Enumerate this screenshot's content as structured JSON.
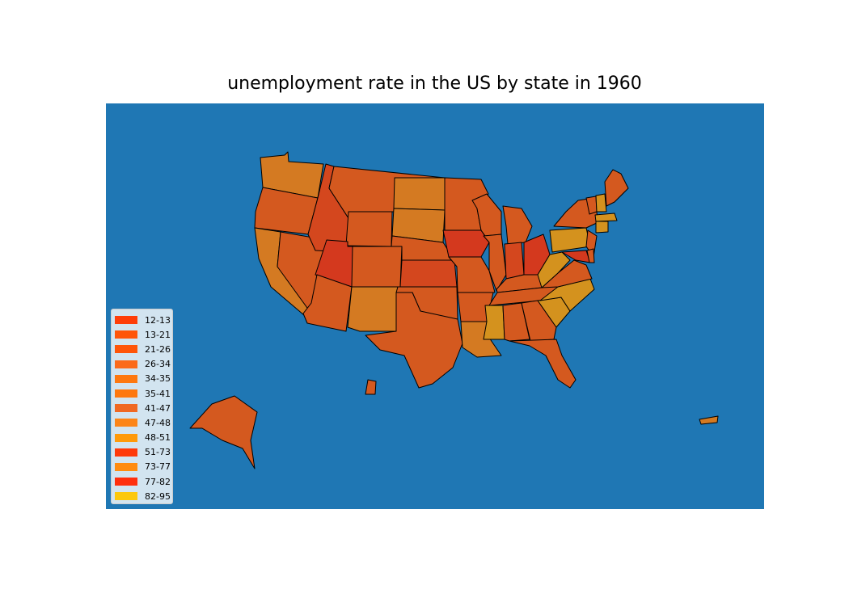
{
  "chart_data": {
    "type": "choropleth",
    "title": "unemployment rate in the US by state in 1960",
    "ocean_color": "#1f77b4",
    "legend": [
      {
        "label": "12-13",
        "color": "#ff3e09"
      },
      {
        "label": "13-21",
        "color": "#ff5509"
      },
      {
        "label": "21-26",
        "color": "#ff5509"
      },
      {
        "label": "26-34",
        "color": "#fb6a1a"
      },
      {
        "label": "34-35",
        "color": "#fe780f"
      },
      {
        "label": "35-41",
        "color": "#fe780f"
      },
      {
        "label": "41-47",
        "color": "#f06822"
      },
      {
        "label": "47-48",
        "color": "#fc8518"
      },
      {
        "label": "48-51",
        "color": "#ff9a0a"
      },
      {
        "label": "51-73",
        "color": "#ff3a0a"
      },
      {
        "label": "73-77",
        "color": "#ff8c10"
      },
      {
        "label": "77-82",
        "color": "#ff2f0d"
      },
      {
        "label": "82-95",
        "color": "#fcc80c"
      }
    ],
    "state_colors": {
      "WA": "#d47a22",
      "OR": "#d4591f",
      "CA": "#d47a22",
      "NV": "#d4591f",
      "ID": "#d4471e",
      "MT": "#d4591f",
      "WY": "#d4591f",
      "UT": "#d4391e",
      "AZ": "#d4591f",
      "CO": "#d4591f",
      "NM": "#d47a22",
      "ND": "#d47a22",
      "SD": "#d47a22",
      "NE": "#d4591f",
      "KS": "#d4471e",
      "OK": "#d4591f",
      "TX": "#d4591f",
      "MN": "#d4591f",
      "IA": "#d4391e",
      "MO": "#d4591f",
      "AR": "#d4591f",
      "LA": "#d47a22",
      "WI": "#d4591f",
      "IL": "#d4591f",
      "MI": "#d4591f",
      "IN": "#d4471e",
      "OH": "#d4391e",
      "KY": "#d4591f",
      "TN": "#d4591f",
      "MS": "#d4921e",
      "AL": "#d4591f",
      "GA": "#d4591f",
      "FL": "#d4591f",
      "SC": "#d4921e",
      "NC": "#d4921e",
      "VA": "#d4591f",
      "WV": "#d4921e",
      "PA": "#d4921e",
      "NY": "#d4591f",
      "ME": "#d4591f",
      "VT": "#d4591f",
      "NH": "#d4921e",
      "MA": "#d4921e",
      "CT": "#d4921e",
      "NJ": "#d4591f",
      "MD": "#d4391e",
      "DE": "#d4591f",
      "AK": "#d4591f",
      "HI": "#d4591f",
      "PR": "#d47a22"
    }
  }
}
